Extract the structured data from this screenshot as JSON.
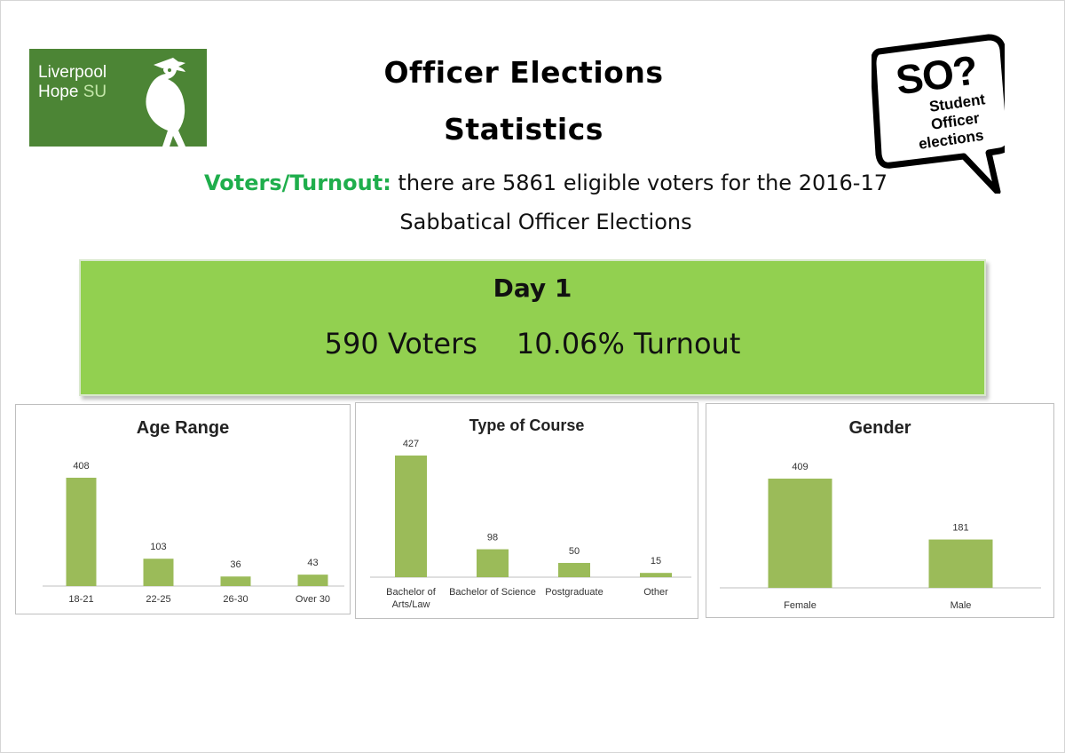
{
  "header": {
    "title_line1": "Officer Elections",
    "title_line2": "Statistics",
    "logo_left_line1": "Liverpool",
    "logo_left_line2a": "Hope ",
    "logo_left_line2b": "SU",
    "logo_right_main": "SO?",
    "logo_right_sub1": "Student",
    "logo_right_sub2": "Officer",
    "logo_right_sub3": "elections"
  },
  "voters": {
    "highlight": "Voters/Turnout:",
    "line1_rest": " there are 5861 eligible voters for the 2016-17",
    "line2": "Sabbatical Officer Elections"
  },
  "day": {
    "title": "Day 1",
    "voters": "590 Voters",
    "turnout": "10.06% Turnout"
  },
  "colors": {
    "bar": "#9bbb59",
    "banner": "#92d050",
    "highlight": "#1fae4c",
    "logo": "#4c8535"
  },
  "chart_data": [
    {
      "type": "bar",
      "title": "Age Range",
      "categories": [
        "18-21",
        "22-25",
        "26-30",
        "Over 30"
      ],
      "values": [
        408,
        103,
        36,
        43
      ],
      "data_labels": true,
      "grid": false
    },
    {
      "type": "bar",
      "title": "Type of Course",
      "categories": [
        [
          "Bachelor of",
          "Arts/Law"
        ],
        [
          "Bachelor of Science"
        ],
        [
          "Postgraduate"
        ],
        [
          "Other"
        ]
      ],
      "values": [
        427,
        98,
        50,
        15
      ],
      "data_labels": true,
      "grid": false
    },
    {
      "type": "bar",
      "title": "Gender",
      "categories": [
        "Female",
        "Male"
      ],
      "values": [
        409,
        181
      ],
      "data_labels": true,
      "grid": false
    }
  ]
}
